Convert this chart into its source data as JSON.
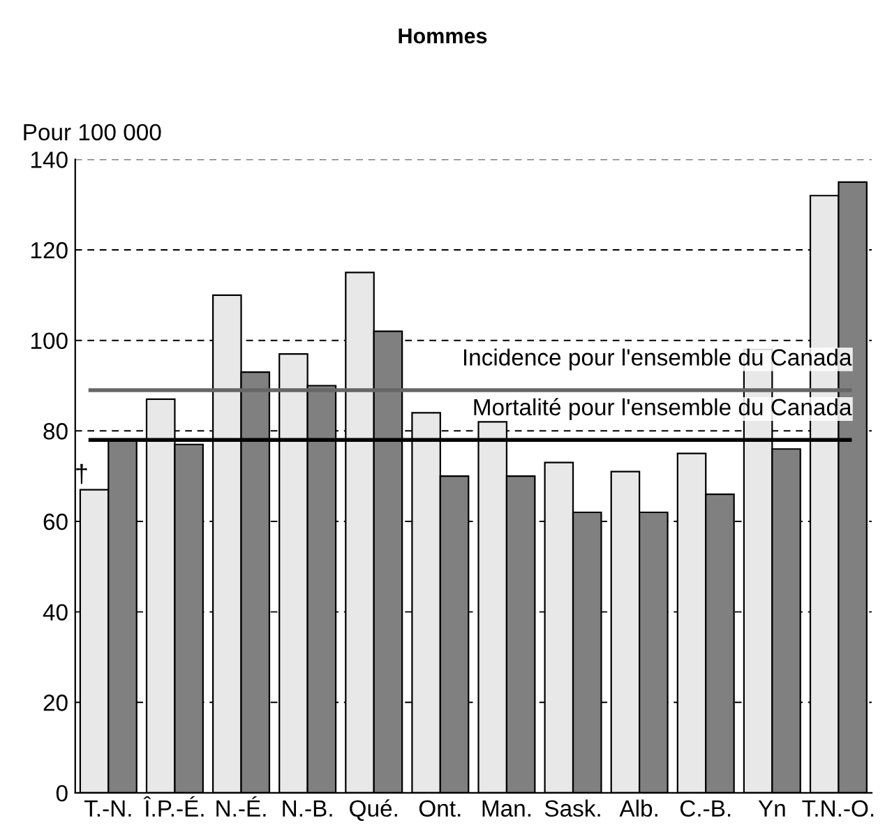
{
  "chart_data": {
    "type": "bar",
    "title": "Hommes",
    "ylabel": "Pour 100 000",
    "categories": [
      "T.-N.",
      "Î.P.-É.",
      "N.-É.",
      "N.-B.",
      "Qué.",
      "Ont.",
      "Man.",
      "Sask.",
      "Alb.",
      "C.-B.",
      "Yn",
      "T.N.-O."
    ],
    "series": [
      {
        "color": "#e8e8e8",
        "values": [
          67,
          87,
          110,
          97,
          115,
          84,
          82,
          73,
          71,
          75,
          98,
          132
        ]
      },
      {
        "color": "#808080",
        "values": [
          78,
          77,
          93,
          90,
          102,
          70,
          70,
          62,
          62,
          66,
          76,
          135
        ]
      }
    ],
    "ylim": [
      0,
      140
    ],
    "yticks": [
      0,
      20,
      40,
      60,
      80,
      100,
      120,
      140
    ],
    "grid": "y",
    "legend": false,
    "ref_lines": [
      {
        "axis": "y",
        "value": 89,
        "label": "Incidence pour l'ensemble du Canada",
        "color": "#666666"
      },
      {
        "axis": "y",
        "value": 78,
        "label": "Mortalité pour l'ensemble du Canada",
        "color": "#000000"
      }
    ],
    "annotations": [
      {
        "text": "†",
        "x": "T.-N.",
        "y": 67
      }
    ]
  }
}
